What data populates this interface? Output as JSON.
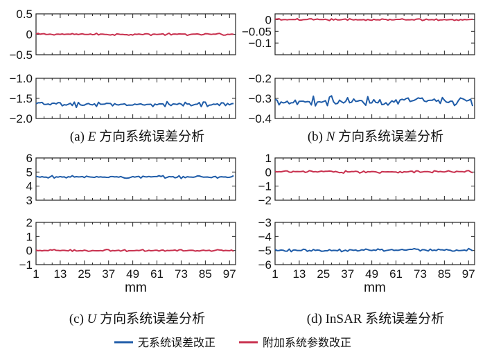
{
  "colors": {
    "uncorrected": "#1f5ca8",
    "corrected": "#c8304e"
  },
  "legend": {
    "uncorrected": "无系统误差改正",
    "corrected": "附加系统参数改正"
  },
  "chart_data": [
    {
      "id": "E",
      "type": "line",
      "caption": "(a) E 方向系统误差分析",
      "caption_parts": {
        "prefix": "(a) ",
        "italic": "E",
        "suffix": " 方向系统误差分析"
      },
      "xlabel": "",
      "xlim": [
        1,
        100
      ],
      "panels": [
        {
          "ylim": [
            -0.5,
            0.5
          ],
          "yticks": [
            0.5,
            0,
            -0.5
          ],
          "ytick_labels": [
            "0.5",
            "0",
            "−0.5"
          ],
          "series": [
            {
              "name": "附加系统参数改正",
              "mean": 0.0,
              "amplitude": 0.03
            }
          ]
        },
        {
          "ylim": [
            -2.0,
            -1.0
          ],
          "yticks": [
            -1.0,
            -1.5,
            -2.0
          ],
          "ytick_labels": [
            "−1.0",
            "−1.5",
            "−2.0"
          ],
          "series": [
            {
              "name": "无系统误差改正",
              "mean": -1.65,
              "amplitude": 0.08
            }
          ]
        }
      ]
    },
    {
      "id": "N",
      "type": "line",
      "caption": "(b) N 方向系统误差分析",
      "caption_parts": {
        "prefix": "(b) ",
        "italic": "N",
        "suffix": " 方向系统误差分析"
      },
      "xlabel": "",
      "xlim": [
        1,
        100
      ],
      "panels": [
        {
          "ylim": [
            -0.15,
            0.025
          ],
          "yticks": [
            0,
            -0.05,
            -0.1
          ],
          "ytick_labels": [
            "0",
            "−0.05",
            "−0.1"
          ],
          "series": [
            {
              "name": "附加系统参数改正",
              "mean": 0.0,
              "amplitude": 0.005
            }
          ]
        },
        {
          "ylim": [
            -0.4,
            -0.2
          ],
          "yticks": [
            -0.2,
            -0.3,
            -0.4
          ],
          "ytick_labels": [
            "−0.2",
            "−0.3",
            "−0.4"
          ],
          "series": [
            {
              "name": "无系统误差改正",
              "mean": -0.315,
              "amplitude": 0.03
            }
          ]
        }
      ]
    },
    {
      "id": "U",
      "type": "line",
      "caption": "(c) U 方向系统误差分析",
      "caption_parts": {
        "prefix": "(c) ",
        "italic": "U",
        "suffix": " 方向系统误差分析"
      },
      "xlabel": "mm",
      "xlim": [
        1,
        100
      ],
      "xticks": [
        1,
        13,
        25,
        37,
        49,
        61,
        73,
        85,
        97
      ],
      "panels": [
        {
          "ylim": [
            3,
            6
          ],
          "yticks": [
            6,
            5,
            4,
            3
          ],
          "ytick_labels": [
            "6",
            "5",
            "4",
            "3"
          ],
          "series": [
            {
              "name": "无系统误差改正",
              "mean": 4.65,
              "amplitude": 0.12
            }
          ]
        },
        {
          "ylim": [
            -1,
            2
          ],
          "yticks": [
            2,
            1,
            0,
            -1
          ],
          "ytick_labels": [
            "2",
            "1",
            "0",
            "−1"
          ],
          "series": [
            {
              "name": "附加系统参数改正",
              "mean": 0.0,
              "amplitude": 0.08
            }
          ]
        }
      ]
    },
    {
      "id": "InSAR",
      "type": "line",
      "caption": "(d) InSAR 系统误差分析",
      "caption_parts": {
        "prefix": "(d) ",
        "italic": "",
        "suffix": "InSAR 系统误差分析"
      },
      "xlabel": "mm",
      "xlim": [
        1,
        100
      ],
      "xticks": [
        1,
        13,
        25,
        37,
        49,
        61,
        73,
        85,
        97
      ],
      "panels": [
        {
          "ylim": [
            -2,
            1
          ],
          "yticks": [
            1,
            0,
            -1,
            -2
          ],
          "ytick_labels": [
            "1",
            "0",
            "−1",
            "−2"
          ],
          "series": [
            {
              "name": "附加系统参数改正",
              "mean": 0.02,
              "amplitude": 0.1
            }
          ]
        },
        {
          "ylim": [
            -6,
            -3
          ],
          "yticks": [
            -3,
            -4,
            -5,
            -6
          ],
          "ytick_labels": [
            "−3",
            "−4",
            "−5",
            "−6"
          ],
          "series": [
            {
              "name": "无系统误差改正",
              "mean": -4.97,
              "amplitude": 0.13
            }
          ]
        }
      ]
    }
  ]
}
